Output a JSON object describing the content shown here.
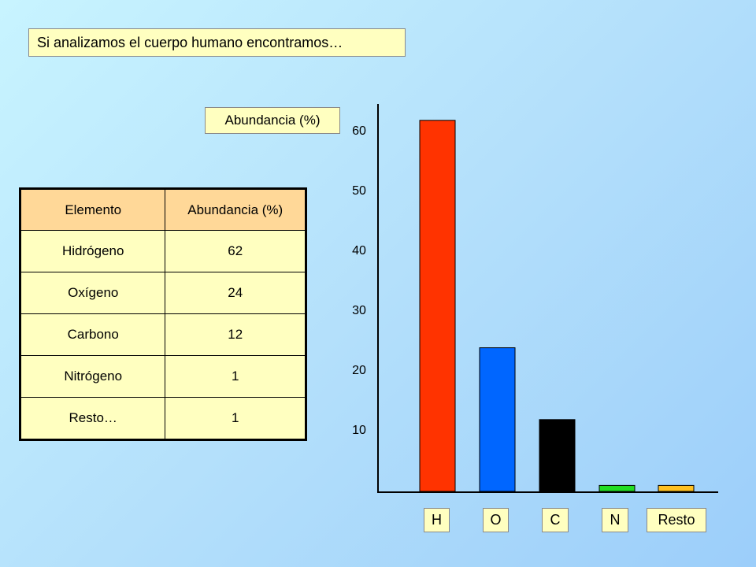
{
  "title": "Si analizamos el cuerpo humano encontramos…",
  "colors": {
    "H": "#ff3300",
    "O": "#0066ff",
    "C": "#000000",
    "N": "#22dd22",
    "Resto": "#ffc020"
  },
  "table": {
    "headers": [
      "Elemento",
      "Abundancia (%)"
    ],
    "rows": [
      [
        "Hidrógeno",
        "62"
      ],
      [
        "Oxígeno",
        "24"
      ],
      [
        "Carbono",
        "12"
      ],
      [
        "Nitrógeno",
        "1"
      ],
      [
        "Resto…",
        "1"
      ]
    ]
  },
  "chart_data": {
    "type": "bar",
    "ylabel": "Abundancia (%)",
    "categories": [
      "H",
      "O",
      "C",
      "N",
      "Resto"
    ],
    "values": [
      62,
      24,
      12,
      1,
      1
    ],
    "yticks": [
      10,
      20,
      30,
      40,
      50,
      60
    ],
    "ylim": [
      0,
      63
    ],
    "grid": false
  }
}
